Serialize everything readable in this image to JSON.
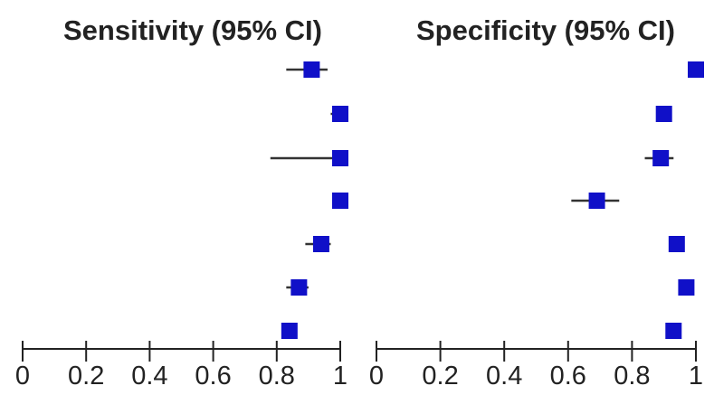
{
  "chart_data": [
    {
      "type": "scatter",
      "title": "Sensitivity (95% CI)",
      "xlim": [
        0,
        1
      ],
      "ticks": [
        "0",
        "0.2",
        "0.4",
        "0.6",
        "0.8",
        "1"
      ],
      "tick_values": [
        0,
        0.2,
        0.4,
        0.6,
        0.8,
        1
      ],
      "points": [
        {
          "value": 0.91,
          "ci": [
            0.83,
            0.96
          ]
        },
        {
          "value": 1.0,
          "ci": [
            0.97,
            1.0
          ]
        },
        {
          "value": 1.0,
          "ci": [
            0.78,
            1.0
          ]
        },
        {
          "value": 1.0,
          "ci": [
            0.98,
            1.0
          ]
        },
        {
          "value": 0.94,
          "ci": [
            0.89,
            0.97
          ]
        },
        {
          "value": 0.87,
          "ci": [
            0.83,
            0.9
          ]
        },
        {
          "value": 0.84,
          "ci": [
            0.83,
            0.86
          ]
        }
      ],
      "grid": false
    },
    {
      "type": "scatter",
      "title": "Specificity (95% CI)",
      "xlim": [
        0,
        1
      ],
      "ticks": [
        "0",
        "0.2",
        "0.4",
        "0.6",
        "0.8",
        "1"
      ],
      "tick_values": [
        0,
        0.2,
        0.4,
        0.6,
        0.8,
        1
      ],
      "points": [
        {
          "value": 1.0,
          "ci": [
            0.98,
            1.0
          ]
        },
        {
          "value": 0.9,
          "ci": [
            0.88,
            0.92
          ]
        },
        {
          "value": 0.89,
          "ci": [
            0.84,
            0.93
          ]
        },
        {
          "value": 0.69,
          "ci": [
            0.61,
            0.76
          ]
        },
        {
          "value": 0.94,
          "ci": [
            0.92,
            0.96
          ]
        },
        {
          "value": 0.97,
          "ci": [
            0.95,
            0.99
          ]
        },
        {
          "value": 0.93,
          "ci": [
            0.91,
            0.95
          ]
        }
      ],
      "grid": false
    }
  ],
  "colors": {
    "marker": "#1010c8",
    "ci_line": "#333333",
    "axis": "#222222"
  }
}
